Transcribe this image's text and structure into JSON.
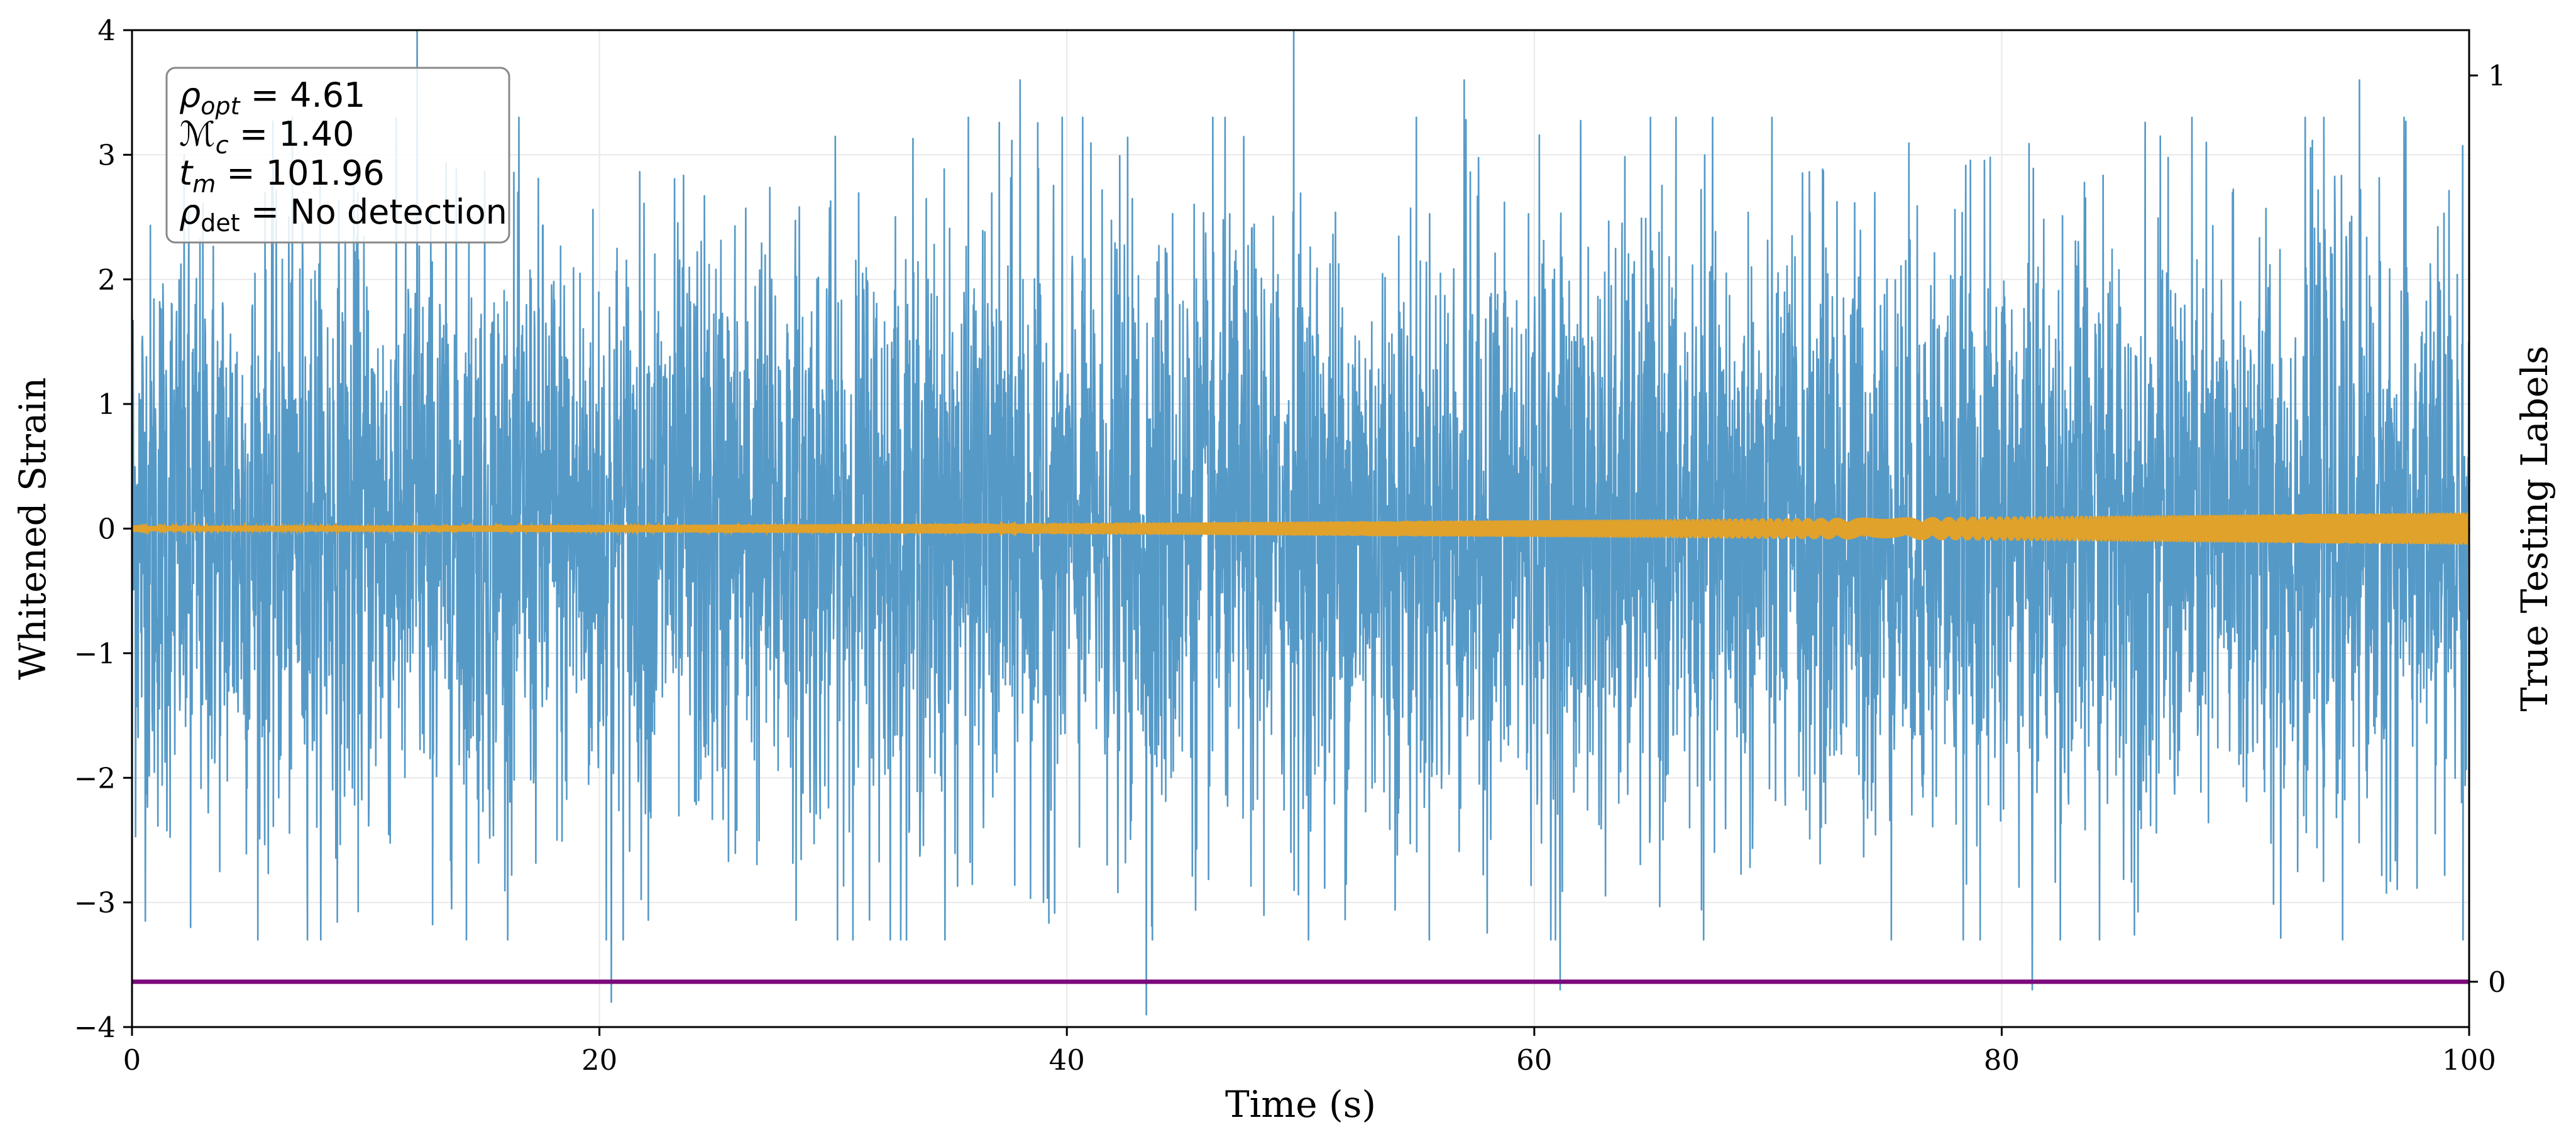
{
  "chart_data": {
    "type": "line",
    "xlabel": "Time (s)",
    "ylabel": "Whitened Strain",
    "y2label": "True Testing Labels",
    "xlim": [
      0,
      100
    ],
    "ylim": [
      -4,
      4
    ],
    "y2lim": [
      -0.05,
      1.05
    ],
    "x_ticks": [
      0,
      20,
      40,
      60,
      80,
      100
    ],
    "y_ticks": [
      -4,
      -3,
      -2,
      -1,
      0,
      1,
      2,
      3,
      4
    ],
    "y_tick_labels": [
      "−4",
      "−3",
      "−2",
      "−1",
      "0",
      "1",
      "2",
      "3",
      "4"
    ],
    "y2_ticks": [
      0,
      1
    ],
    "grid": true,
    "legend": "none",
    "annotation": {
      "placement": "top-left",
      "lines": [
        {
          "sym": "ρ",
          "sub": "opt",
          "value": "4.61"
        },
        {
          "sym": "ℳ",
          "sub": "c",
          "value": "1.40"
        },
        {
          "sym": "t",
          "sub": "m",
          "value": "101.96"
        },
        {
          "sym": "ρ",
          "sub": "det",
          "value": "No detection"
        }
      ]
    },
    "series": [
      {
        "kind": "noise",
        "color": "#5599c7",
        "typical_envelope": 1.2,
        "peaks": [
          {
            "x": 12.2,
            "y": 4.0
          },
          {
            "x": 49.7,
            "y": 4.0
          },
          {
            "x": 38.0,
            "y": 3.6
          },
          {
            "x": 57.0,
            "y": 3.6
          },
          {
            "x": 95.3,
            "y": 3.6
          },
          {
            "x": 2.5,
            "y": -3.2
          },
          {
            "x": 20.5,
            "y": -3.8
          },
          {
            "x": 43.4,
            "y": -3.9
          },
          {
            "x": 61.1,
            "y": -3.7
          },
          {
            "x": 81.3,
            "y": -3.7
          }
        ]
      },
      {
        "kind": "signal",
        "color": "#e0a22b",
        "amplitude_start": 0.02,
        "amplitude_end": 0.13
      },
      {
        "kind": "label",
        "axis": "right",
        "color": "#7b0a7b",
        "x": [
          0,
          100
        ],
        "values": [
          0,
          0
        ]
      }
    ]
  }
}
